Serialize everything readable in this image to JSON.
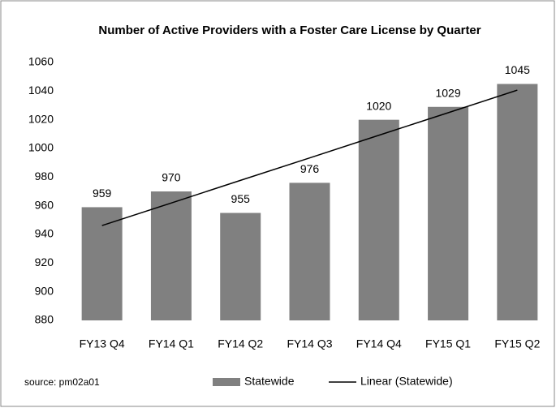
{
  "chart_data": {
    "type": "bar",
    "title": "Number of Active Providers with a Foster Care License by Quarter",
    "categories": [
      "FY13 Q4",
      "FY14 Q1",
      "FY14 Q2",
      "FY14 Q3",
      "FY14 Q4",
      "FY15 Q1",
      "FY15 Q2"
    ],
    "series": [
      {
        "name": "Statewide",
        "type": "bar",
        "color": "#808080",
        "values": [
          959,
          970,
          955,
          976,
          1020,
          1029,
          1045
        ]
      },
      {
        "name": "Linear (Statewide)",
        "type": "line",
        "color": "#000000",
        "values": [
          946.2,
          961.9,
          977.7,
          993.4,
          1009.2,
          1024.9,
          1040.7
        ]
      }
    ],
    "ylim": [
      880,
      1060
    ],
    "yticks": [
      880,
      900,
      920,
      940,
      960,
      980,
      1000,
      1020,
      1040,
      1060
    ],
    "annotation": "source: pm02a01",
    "data_labels": true
  }
}
